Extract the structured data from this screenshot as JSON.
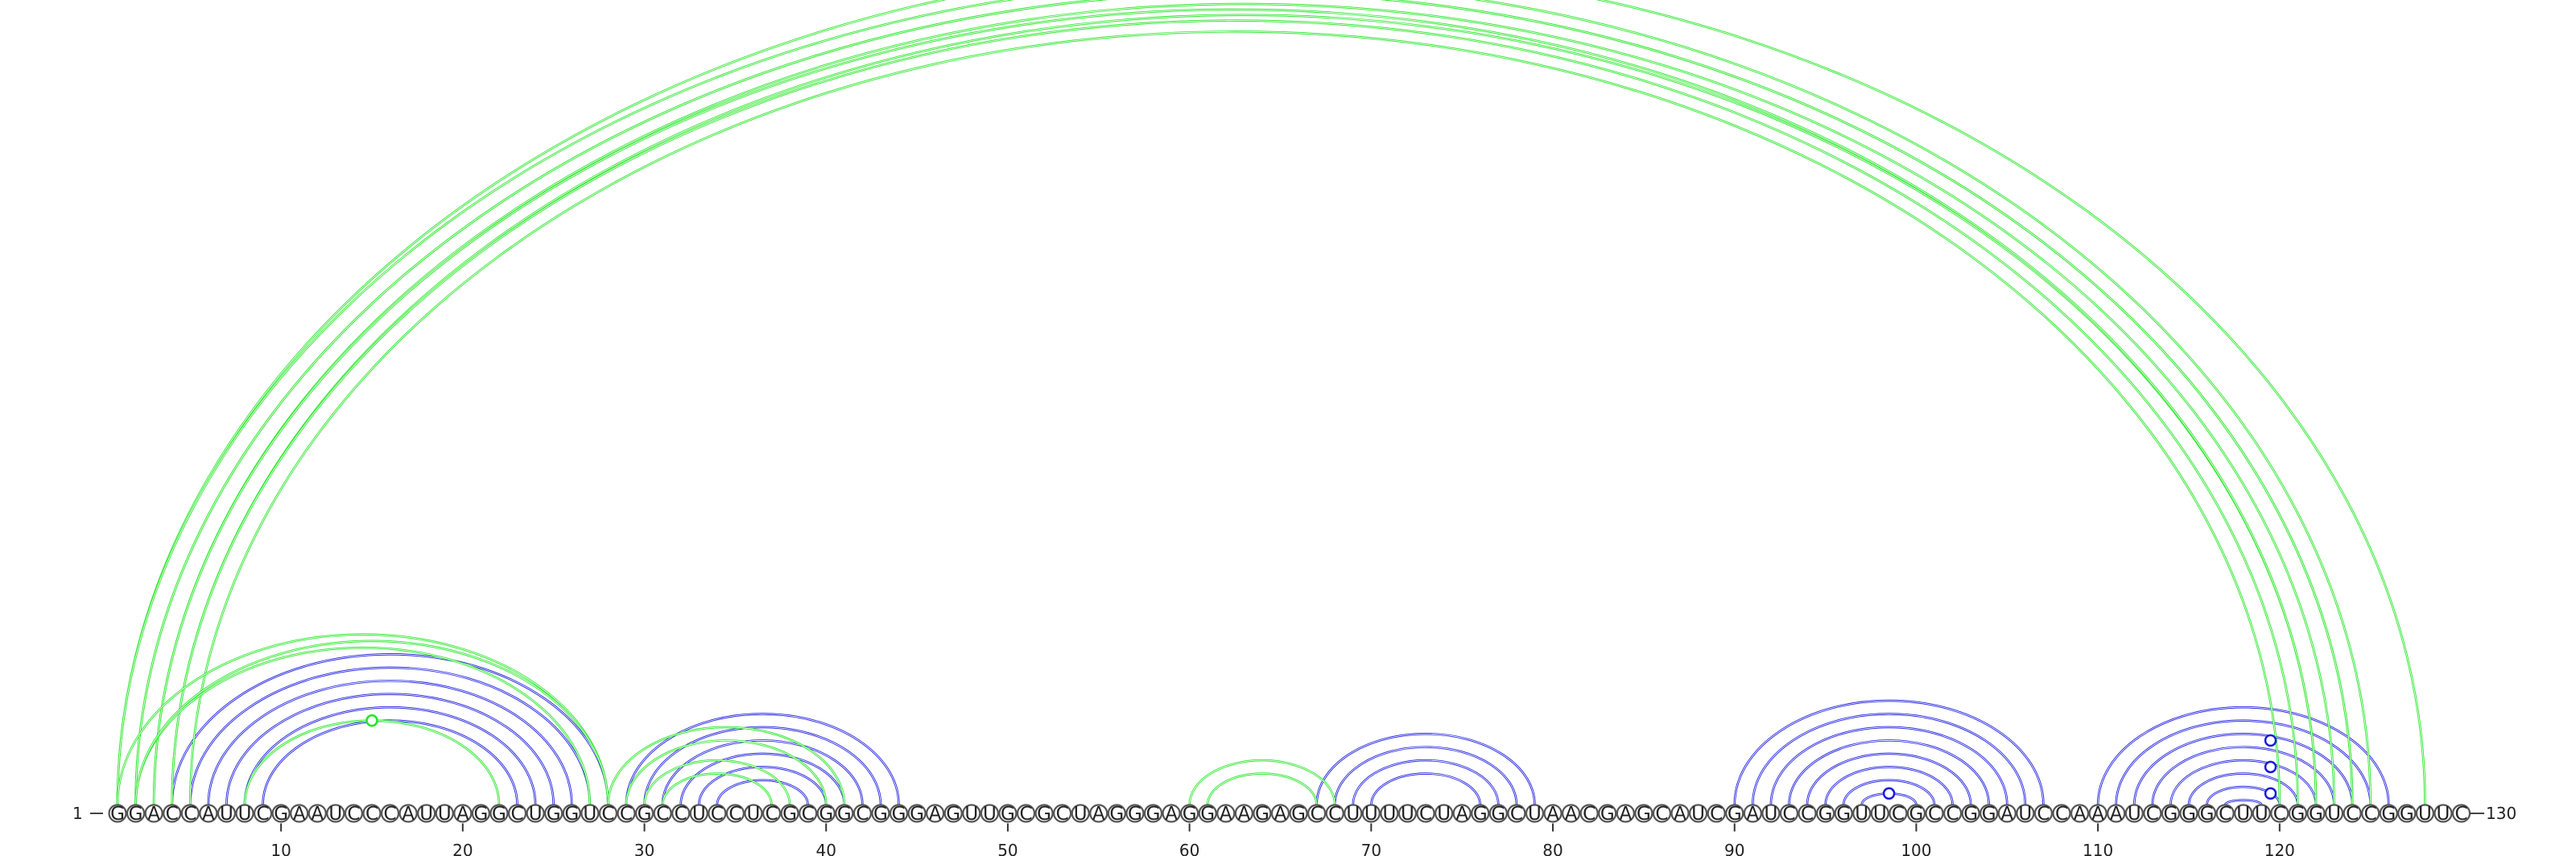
{
  "sequence": "GGACCAUUCGAAUCCCAUUAGGCUGGUCCGCCUCCUCGCGGCGGGAGUUGCGCUAGGGAGGAAGAGCCUUUUCUAGGCUAACGAGCAUCGAUCCGGUUCGCCGGAUCCAAAUCGGGCUUCGGUCCGGUUC",
  "start_label": "1",
  "end_label": "130",
  "tick_labels": [
    "10",
    "20",
    "30",
    "40",
    "50",
    "60",
    "70",
    "80",
    "90",
    "100",
    "110",
    "120"
  ],
  "colors": {
    "blue": "#1a1adf",
    "green": "#22e622"
  },
  "chart_data": {
    "type": "arc",
    "blue_helices": [
      {
        "outer": [
          4,
          28
        ],
        "bp": 6
      },
      {
        "outer": [
          29,
          44
        ],
        "bp": 6
      },
      {
        "outer": [
          67,
          79
        ],
        "bp": 4
      },
      {
        "outer": [
          90,
          107
        ],
        "bp": 5
      },
      {
        "outer": [
          95,
          102
        ],
        "bp": 3
      },
      {
        "outer": [
          110,
          126
        ],
        "bp": 8
      }
    ],
    "green_helices": [
      {
        "outer": [
          1,
          128
        ],
        "bp": 1
      },
      {
        "outer": [
          1,
          125
        ],
        "bp": 4
      },
      {
        "outer": [
          2,
          124
        ],
        "bp": 1
      },
      {
        "outer": [
          3,
          122
        ],
        "bp": 3
      },
      {
        "outer": [
          1,
          28
        ],
        "bp": 2
      },
      {
        "outer": [
          2,
          28
        ],
        "bp": 1
      },
      {
        "outer": [
          8,
          22
        ],
        "bp": 1
      },
      {
        "outer": [
          28,
          41
        ],
        "bp": 2
      },
      {
        "outer": [
          30,
          38
        ],
        "bp": 2
      },
      {
        "outer": [
          60,
          68
        ],
        "bp": 2
      }
    ],
    "markers": [
      {
        "pos": [
          1,
          130
        ],
        "color": "green"
      },
      {
        "pos": [
          8,
          22
        ],
        "color": "green"
      },
      {
        "pos": [
          97,
          100
        ],
        "color": "blue"
      },
      {
        "pos": [
          114,
          125
        ],
        "color": "blue"
      },
      {
        "pos": [
          116,
          123
        ],
        "color": "blue"
      },
      {
        "pos": [
          118,
          121
        ],
        "color": "blue"
      }
    ]
  }
}
